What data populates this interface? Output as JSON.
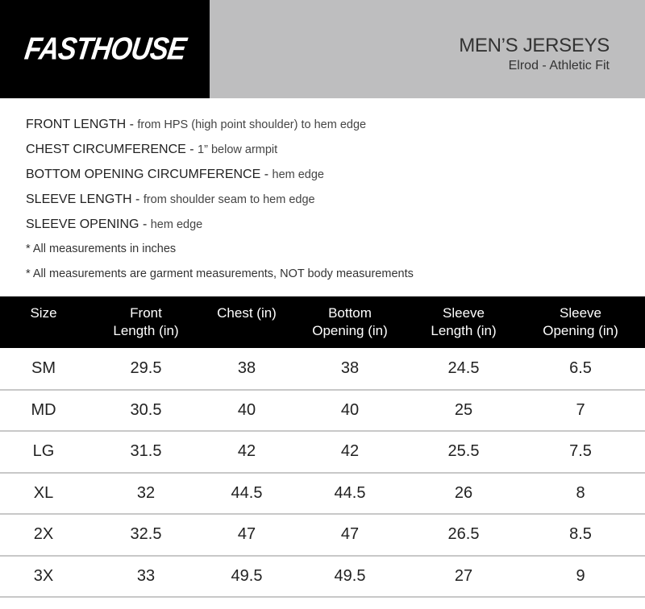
{
  "header": {
    "logo": "FASTHOUSE",
    "title": "MEN’S JERSEYS",
    "subtitle": "Elrod - Athletic Fit"
  },
  "notes": [
    {
      "term": "FRONT LENGTH",
      "desc": "from HPS (high point shoulder) to hem edge"
    },
    {
      "term": "CHEST CIRCUMFERENCE",
      "desc": "1” below armpit"
    },
    {
      "term": "BOTTOM OPENING CIRCUMFERENCE",
      "desc": "hem edge"
    },
    {
      "term": "SLEEVE LENGTH",
      "desc": "from shoulder seam to hem edge"
    },
    {
      "term": "SLEEVE OPENING",
      "desc": "hem edge"
    }
  ],
  "footnotes": [
    "* All measurements in inches",
    "* All measurements are garment measurements, NOT body measurements"
  ],
  "table": {
    "headers": [
      [
        "Size",
        ""
      ],
      [
        "Front",
        "Length (in)"
      ],
      [
        "Chest (in)",
        ""
      ],
      [
        "Bottom",
        "Opening (in)"
      ],
      [
        "Sleeve",
        "Length (in)"
      ],
      [
        "Sleeve",
        "Opening (in)"
      ]
    ],
    "rows": [
      [
        "SM",
        "29.5",
        "38",
        "38",
        "24.5",
        "6.5"
      ],
      [
        "MD",
        "30.5",
        "40",
        "40",
        "25",
        "7"
      ],
      [
        "LG",
        "31.5",
        "42",
        "42",
        "25.5",
        "7.5"
      ],
      [
        "XL",
        "32",
        "44.5",
        "44.5",
        "26",
        "8"
      ],
      [
        "2X",
        "32.5",
        "47",
        "47",
        "26.5",
        "8.5"
      ],
      [
        "3X",
        "33",
        "49.5",
        "49.5",
        "27",
        "9"
      ]
    ]
  }
}
